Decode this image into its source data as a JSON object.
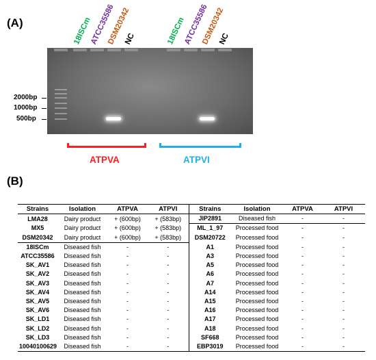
{
  "panel_a": {
    "label": "(A)",
    "lanes": [
      {
        "text": "18ISCm",
        "color": "#00b050"
      },
      {
        "text": "ATCC35586",
        "color": "#7030a0"
      },
      {
        "text": "DSM20342",
        "color": "#c55a11"
      },
      {
        "text": "NC",
        "color": "#000000"
      },
      {
        "text": "18ISCm",
        "color": "#00b050"
      },
      {
        "text": "ATCC35586",
        "color": "#7030a0"
      },
      {
        "text": "DSM20342",
        "color": "#c55a11"
      },
      {
        "text": "NC",
        "color": "#000000"
      }
    ],
    "size_markers": [
      "2000bp",
      "1000bp",
      "500bp"
    ],
    "groups": [
      {
        "name": "ATPVA",
        "color": "#ff1f1f"
      },
      {
        "name": "ATPVI",
        "color": "#1fb0ea"
      }
    ]
  },
  "panel_b": {
    "label": "(B)",
    "headers": [
      "Strains",
      "Isolation",
      "ATPVA",
      "ATPVI",
      "Strains",
      "Isolation",
      "ATPVA",
      "ATPVI"
    ],
    "left_rows": [
      [
        "LMA28",
        "Dairy product",
        "+ (600bp)",
        "+ (583bp)"
      ],
      [
        "MX5",
        "Dairy product",
        "+ (600bp)",
        "+ (583bp)"
      ],
      [
        "DSM20342",
        "Dairy product",
        "+ (600bp)",
        "+ (583bp)"
      ],
      [
        "18ISCm",
        "Diseased fish",
        "-",
        "-"
      ],
      [
        "ATCC35586",
        "Diseased fish",
        "-",
        "-"
      ],
      [
        "SK_AV1",
        "Diseased fish",
        "-",
        "-"
      ],
      [
        "SK_AV2",
        "Diseased fish",
        "-",
        "-"
      ],
      [
        "SK_AV3",
        "Diseased fish",
        "-",
        "-"
      ],
      [
        "SK_AV4",
        "Diseased fish",
        "-",
        "-"
      ],
      [
        "SK_AV5",
        "Diseased fish",
        "-",
        "-"
      ],
      [
        "SK_AV6",
        "Diseased fish",
        "-",
        "-"
      ],
      [
        "SK_LD1",
        "Diseased fish",
        "-",
        "-"
      ],
      [
        "SK_LD2",
        "Diseased fish",
        "-",
        "-"
      ],
      [
        "SK_LD3",
        "Diseased fish",
        "-",
        "-"
      ],
      [
        "10040100629",
        "Diseased fish",
        "-",
        "-"
      ]
    ],
    "right_rows": [
      [
        "JIP2891",
        "Diseased fish",
        "-",
        "-"
      ],
      [
        "ML_1_97",
        "Processed food",
        "-",
        "-"
      ],
      [
        "DSM20722",
        "Processed food",
        "-",
        "-"
      ],
      [
        "A1",
        "Processed food",
        "-",
        "-"
      ],
      [
        "A3",
        "Processed food",
        "-",
        "-"
      ],
      [
        "A5",
        "Processed food",
        "-",
        "-"
      ],
      [
        "A6",
        "Processed food",
        "-",
        "-"
      ],
      [
        "A7",
        "Processed food",
        "-",
        "-"
      ],
      [
        "A14",
        "Processed food",
        "-",
        "-"
      ],
      [
        "A15",
        "Processed food",
        "-",
        "-"
      ],
      [
        "A16",
        "Processed food",
        "-",
        "-"
      ],
      [
        "A17",
        "Processed food",
        "-",
        "-"
      ],
      [
        "A18",
        "Processed food",
        "-",
        "-"
      ],
      [
        "SF668",
        "Processed food",
        "-",
        "-"
      ],
      [
        "EBP3019",
        "Processed food",
        "-",
        "-"
      ]
    ]
  }
}
